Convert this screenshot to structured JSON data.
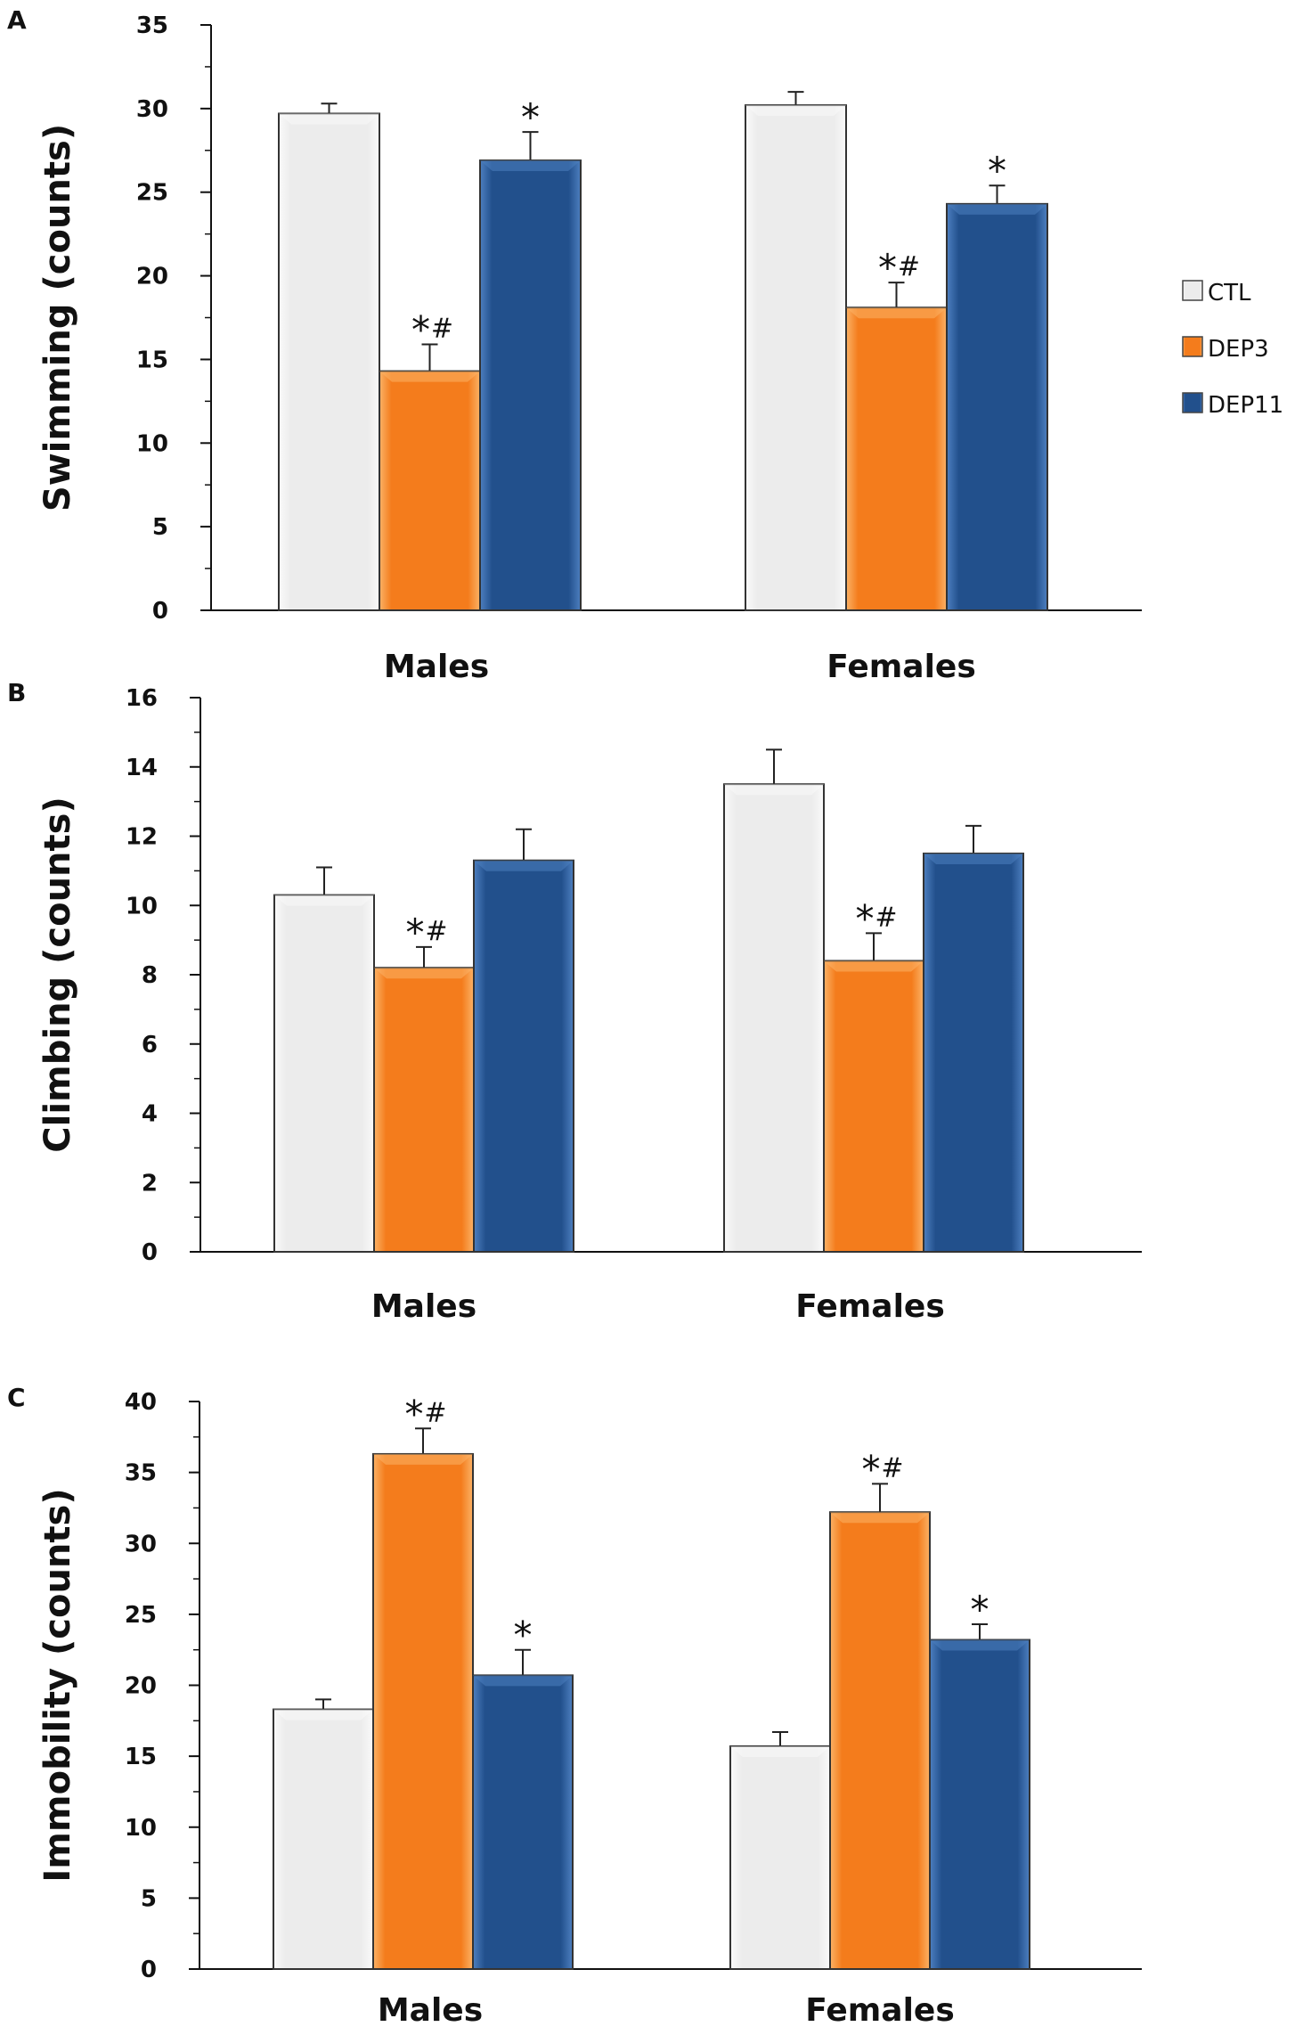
{
  "legend": {
    "items": [
      {
        "name": "CTL",
        "key": "ctl"
      },
      {
        "name": "DEP3",
        "key": "dep3"
      },
      {
        "name": "DEP11",
        "key": "dep11"
      }
    ]
  },
  "colors": {
    "ctl": "#ececec",
    "ctl_edge": "#fafafa",
    "dep3": "#f47c1c",
    "dep3_edge": "#fbb266",
    "dep11": "#22508c",
    "dep11_edge": "#4d7fc0"
  },
  "chart_data": [
    {
      "panel_label": "A",
      "type": "bar",
      "title": "",
      "ylabel": "Swimming (counts)",
      "xlabel": "",
      "categories": [
        "Males",
        "Females"
      ],
      "ylim": [
        0,
        35
      ],
      "yticks": [
        "0",
        "5",
        "10",
        "15",
        "20",
        "25",
        "30",
        "35"
      ],
      "ytick_values": [
        0,
        5,
        10,
        15,
        20,
        25,
        30,
        35
      ],
      "minor_step": 2.5,
      "series": [
        {
          "name": "CTL",
          "key": "ctl",
          "values": [
            29.7,
            30.2
          ],
          "errors": [
            0.6,
            0.8
          ],
          "sig_star": [
            "",
            ""
          ],
          "sig_hash": [
            "",
            ""
          ]
        },
        {
          "name": "DEP3",
          "key": "dep3",
          "values": [
            14.3,
            18.1
          ],
          "errors": [
            1.6,
            1.5
          ],
          "sig_star": [
            "*",
            "*"
          ],
          "sig_hash": [
            "#",
            "#"
          ]
        },
        {
          "name": "DEP11",
          "key": "dep11",
          "values": [
            26.9,
            24.3
          ],
          "errors": [
            1.7,
            1.1
          ],
          "sig_star": [
            "*",
            "*"
          ],
          "sig_hash": [
            "",
            ""
          ]
        }
      ]
    },
    {
      "panel_label": "B",
      "type": "bar",
      "title": "",
      "ylabel": "Climbing (counts)",
      "xlabel": "",
      "categories": [
        "Males",
        "Females"
      ],
      "ylim": [
        0,
        16
      ],
      "yticks": [
        "0",
        "2",
        "4",
        "6",
        "8",
        "10",
        "12",
        "14",
        "16"
      ],
      "ytick_values": [
        0,
        2,
        4,
        6,
        8,
        10,
        12,
        14,
        16
      ],
      "minor_step": 1,
      "series": [
        {
          "name": "CTL",
          "key": "ctl",
          "values": [
            10.3,
            13.5
          ],
          "errors": [
            0.8,
            1.0
          ],
          "sig_star": [
            "",
            ""
          ],
          "sig_hash": [
            "",
            ""
          ]
        },
        {
          "name": "DEP3",
          "key": "dep3",
          "values": [
            8.2,
            8.4
          ],
          "errors": [
            0.6,
            0.8
          ],
          "sig_star": [
            "*",
            "*"
          ],
          "sig_hash": [
            "#",
            "#"
          ]
        },
        {
          "name": "DEP11",
          "key": "dep11",
          "values": [
            11.3,
            11.5
          ],
          "errors": [
            0.9,
            0.8
          ],
          "sig_star": [
            "",
            ""
          ],
          "sig_hash": [
            "",
            ""
          ]
        }
      ]
    },
    {
      "panel_label": "C",
      "type": "bar",
      "title": "",
      "ylabel": "Immobility (counts)",
      "xlabel": "",
      "categories": [
        "Males",
        "Females"
      ],
      "ylim": [
        0,
        40
      ],
      "yticks": [
        "0",
        "5",
        "10",
        "15",
        "20",
        "25",
        "30",
        "35",
        "40"
      ],
      "ytick_values": [
        0,
        5,
        10,
        15,
        20,
        25,
        30,
        35,
        40
      ],
      "minor_step": 2.5,
      "series": [
        {
          "name": "CTL",
          "key": "ctl",
          "values": [
            18.3,
            15.7
          ],
          "errors": [
            0.7,
            1.0
          ],
          "sig_star": [
            "",
            ""
          ],
          "sig_hash": [
            "",
            ""
          ]
        },
        {
          "name": "DEP3",
          "key": "dep3",
          "values": [
            36.3,
            32.2
          ],
          "errors": [
            1.8,
            2.0
          ],
          "sig_star": [
            "*",
            "*"
          ],
          "sig_hash": [
            "#",
            "#"
          ]
        },
        {
          "name": "DEP11",
          "key": "dep11",
          "values": [
            20.7,
            23.2
          ],
          "errors": [
            1.8,
            1.1
          ],
          "sig_star": [
            "*",
            "*"
          ],
          "sig_hash": [
            "",
            ""
          ]
        }
      ]
    }
  ]
}
